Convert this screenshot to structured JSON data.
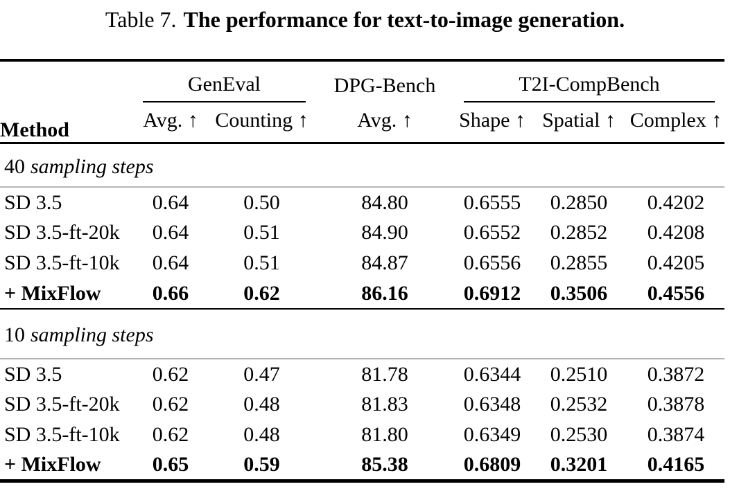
{
  "caption": {
    "label": "Table 7.",
    "text": "The performance for text-to-image generation."
  },
  "table": {
    "method_header": "Method",
    "groups": [
      {
        "label": "GenEval"
      },
      {
        "label": "DPG-Bench"
      },
      {
        "label": "T2I-CompBench"
      }
    ],
    "subheaders": [
      "Avg. ↑",
      "Counting ↑",
      "Avg. ↑",
      "Shape ↑",
      "Spatial ↑",
      "Complex ↑"
    ],
    "sections": [
      {
        "label_number": "40",
        "label_suffix": "sampling steps",
        "rows": [
          {
            "method": "SD 3.5",
            "values": [
              "0.64",
              "0.50",
              "84.80",
              "0.6555",
              "0.2850",
              "0.4202"
            ]
          },
          {
            "method": "SD 3.5-ft-20k",
            "values": [
              "0.64",
              "0.51",
              "84.90",
              "0.6552",
              "0.2852",
              "0.4208"
            ]
          },
          {
            "method": "SD 3.5-ft-10k",
            "values": [
              "0.64",
              "0.51",
              "84.87",
              "0.6556",
              "0.2855",
              "0.4205"
            ]
          },
          {
            "method": "+ MixFlow",
            "values": [
              "0.66",
              "0.62",
              "86.16",
              "0.6912",
              "0.3506",
              "0.4556"
            ]
          }
        ]
      },
      {
        "label_number": "10",
        "label_suffix": "sampling steps",
        "rows": [
          {
            "method": "SD 3.5",
            "values": [
              "0.62",
              "0.47",
              "81.78",
              "0.6344",
              "0.2510",
              "0.3872"
            ]
          },
          {
            "method": "SD 3.5-ft-20k",
            "values": [
              "0.62",
              "0.48",
              "81.83",
              "0.6348",
              "0.2532",
              "0.3878"
            ]
          },
          {
            "method": "SD 3.5-ft-10k",
            "values": [
              "0.62",
              "0.48",
              "81.80",
              "0.6349",
              "0.2530",
              "0.3874"
            ]
          },
          {
            "method": "+ MixFlow",
            "values": [
              "0.65",
              "0.59",
              "85.38",
              "0.6809",
              "0.3201",
              "0.4165"
            ]
          }
        ]
      }
    ]
  }
}
